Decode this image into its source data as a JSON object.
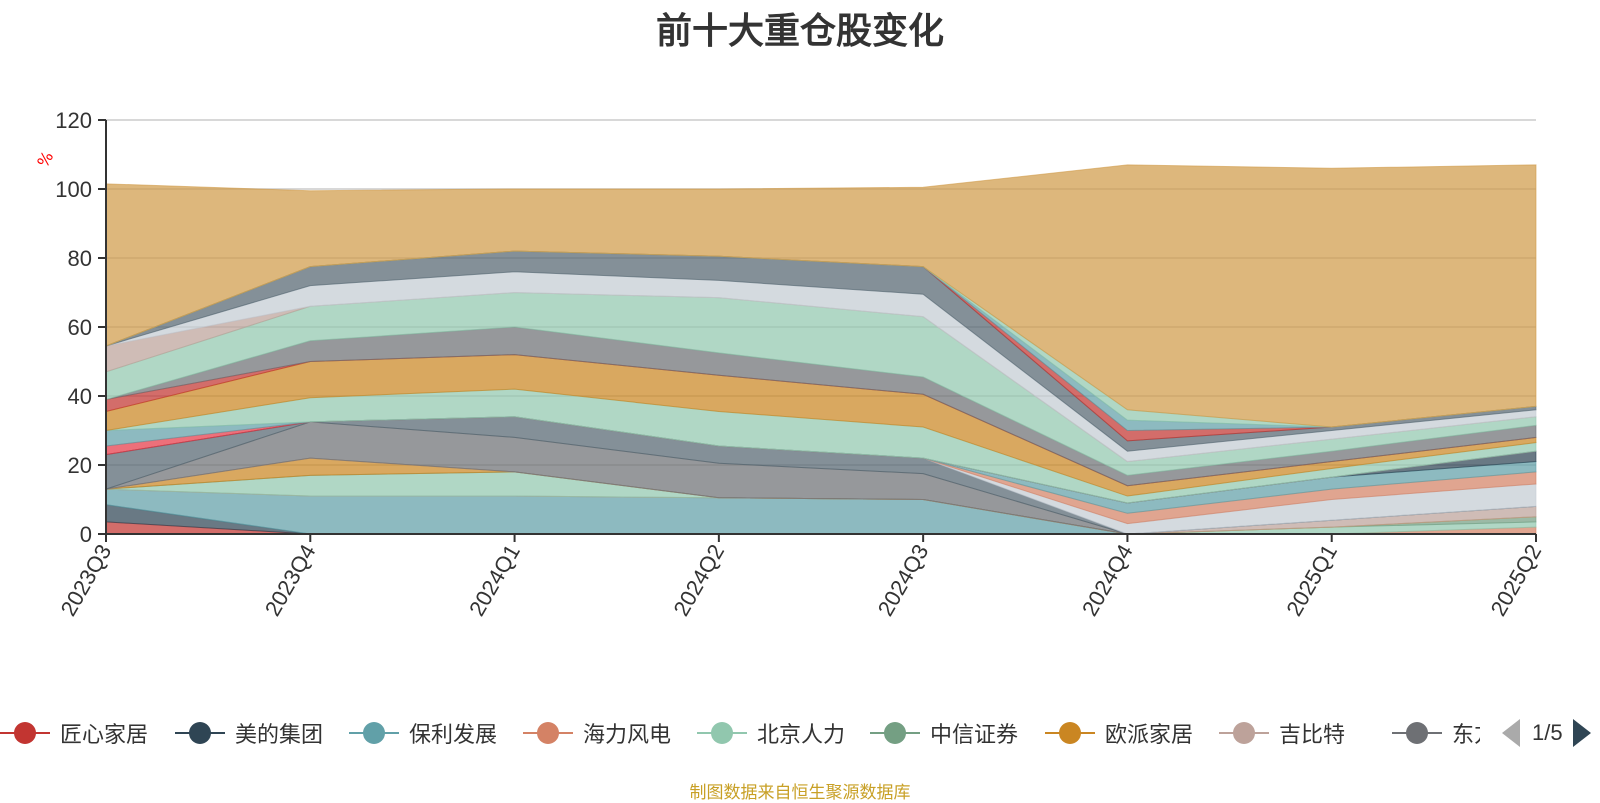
{
  "chart_data": {
    "type": "area",
    "title": "前十大重仓股变化",
    "ylabel": "%",
    "ylim": [
      0,
      120
    ],
    "yticks": [
      0,
      20,
      40,
      60,
      80,
      100,
      120
    ],
    "x": [
      "2023Q3",
      "2023Q4",
      "2024Q1",
      "2024Q2",
      "2024Q3",
      "2024Q4",
      "2025Q1",
      "2025Q2"
    ],
    "stacked": true,
    "grid": true,
    "legend_position": "bottom",
    "series": [
      {
        "name": "匠心家居",
        "color": "#c23531",
        "values": [
          3.5,
          0,
          0,
          0,
          0,
          0,
          0,
          0
        ]
      },
      {
        "name": "美的集团",
        "color": "#2f4554",
        "values": [
          5,
          0,
          0,
          0,
          0,
          0,
          0,
          0
        ]
      },
      {
        "name": "保利发展",
        "color": "#61a0a8",
        "values": [
          4.5,
          11,
          11,
          10.5,
          10,
          0,
          0,
          0
        ]
      },
      {
        "name": "海力风电",
        "color": "#d48265",
        "values": [
          0,
          0,
          0,
          0,
          0,
          0,
          0,
          2
        ]
      },
      {
        "name": "北京人力",
        "color": "#91c7ae",
        "values": [
          0,
          6,
          7,
          0,
          0,
          0,
          2,
          1.5
        ]
      },
      {
        "name": "中信证券",
        "color": "#749f83",
        "values": [
          0,
          0,
          0,
          0,
          0,
          0,
          0,
          1.5
        ]
      },
      {
        "name": "欧派家居",
        "color": "#ca8622",
        "values": [
          0,
          5,
          0,
          0,
          0,
          0,
          0,
          0
        ]
      },
      {
        "name": "吉比特",
        "color": "#bda29a",
        "values": [
          0,
          0,
          0,
          0,
          0,
          0,
          2,
          3
        ]
      },
      {
        "name": "东方财富",
        "color": "#6e7074",
        "values": [
          0,
          10.5,
          10,
          10,
          7.5,
          0,
          0,
          0
        ]
      },
      {
        "name": "",
        "color": "#546570",
        "values": [
          10,
          0,
          6,
          5,
          4.5,
          0,
          0,
          0
        ]
      },
      {
        "name": "",
        "color": "#c4ccd3",
        "values": [
          0,
          0,
          0,
          0,
          0,
          3,
          6,
          6.5
        ]
      },
      {
        "name": "",
        "color": "#d48265",
        "values": [
          0,
          0,
          0,
          0,
          0,
          3,
          3,
          3.5
        ]
      },
      {
        "name": "",
        "color": "#61a0a8",
        "values": [
          0,
          0,
          0,
          0,
          0,
          3,
          3.5,
          3
        ]
      },
      {
        "name": "",
        "color": "#2f4554",
        "values": [
          0,
          0,
          0,
          0,
          0,
          0,
          0,
          3
        ]
      },
      {
        "name": "",
        "color": "#e63946",
        "values": [
          2.5,
          0,
          0,
          0,
          0,
          0,
          0,
          0
        ]
      },
      {
        "name": "",
        "color": "#61a0a8",
        "values": [
          4.5,
          0,
          0,
          0,
          0,
          0,
          0,
          0
        ]
      },
      {
        "name": "",
        "color": "#91c7ae",
        "values": [
          0,
          7,
          8,
          10,
          9,
          2,
          2.5,
          2.5
        ]
      },
      {
        "name": "",
        "color": "#ca8622",
        "values": [
          5.5,
          10.5,
          10,
          10.5,
          9.5,
          3,
          2,
          1.5
        ]
      },
      {
        "name": "",
        "color": "#c23531",
        "values": [
          3.5,
          0,
          0,
          0,
          0,
          0,
          0,
          0
        ]
      },
      {
        "name": "",
        "color": "#6e7074",
        "values": [
          0,
          6,
          8,
          6.5,
          5,
          3,
          3,
          3.5
        ]
      },
      {
        "name": "",
        "color": "#91c7ae",
        "values": [
          8,
          10,
          10,
          16,
          17.5,
          4,
          3.5,
          2.5
        ]
      },
      {
        "name": "",
        "color": "#bda29a",
        "values": [
          7.5,
          0,
          0,
          0,
          0,
          0,
          0,
          0
        ]
      },
      {
        "name": "",
        "color": "#c4ccd3",
        "values": [
          0,
          6,
          6,
          5,
          6.5,
          3,
          2.5,
          2
        ]
      },
      {
        "name": "",
        "color": "#546570",
        "values": [
          0,
          5.5,
          6,
          7,
          8,
          3,
          1,
          1
        ]
      },
      {
        "name": "",
        "color": "#c23531",
        "values": [
          0,
          0,
          0,
          0,
          0,
          3,
          0,
          0
        ]
      },
      {
        "name": "",
        "color": "#61a0a8",
        "values": [
          0,
          0,
          0,
          0,
          0,
          3,
          0,
          0
        ]
      },
      {
        "name": "",
        "color": "#91c7ae",
        "values": [
          0,
          0,
          0,
          0,
          0,
          3,
          0,
          0
        ]
      },
      {
        "name": "",
        "color": "#d09b4a",
        "values": [
          47,
          22,
          18,
          19.5,
          23,
          71,
          75,
          70
        ]
      }
    ]
  },
  "legend": {
    "page_text": "1/5",
    "items": [
      {
        "label": "匠心家居",
        "color": "#c23531"
      },
      {
        "label": "美的集团",
        "color": "#2f4554"
      },
      {
        "label": "保利发展",
        "color": "#61a0a8"
      },
      {
        "label": "海力风电",
        "color": "#d48265"
      },
      {
        "label": "北京人力",
        "color": "#91c7ae"
      },
      {
        "label": "中信证券",
        "color": "#749f83"
      },
      {
        "label": "欧派家居",
        "color": "#ca8622"
      },
      {
        "label": "吉比特",
        "color": "#bda29a"
      },
      {
        "label": "东方财富",
        "color": "#6e7074"
      }
    ]
  },
  "footer": {
    "source": "制图数据来自恒生聚源数据库"
  }
}
